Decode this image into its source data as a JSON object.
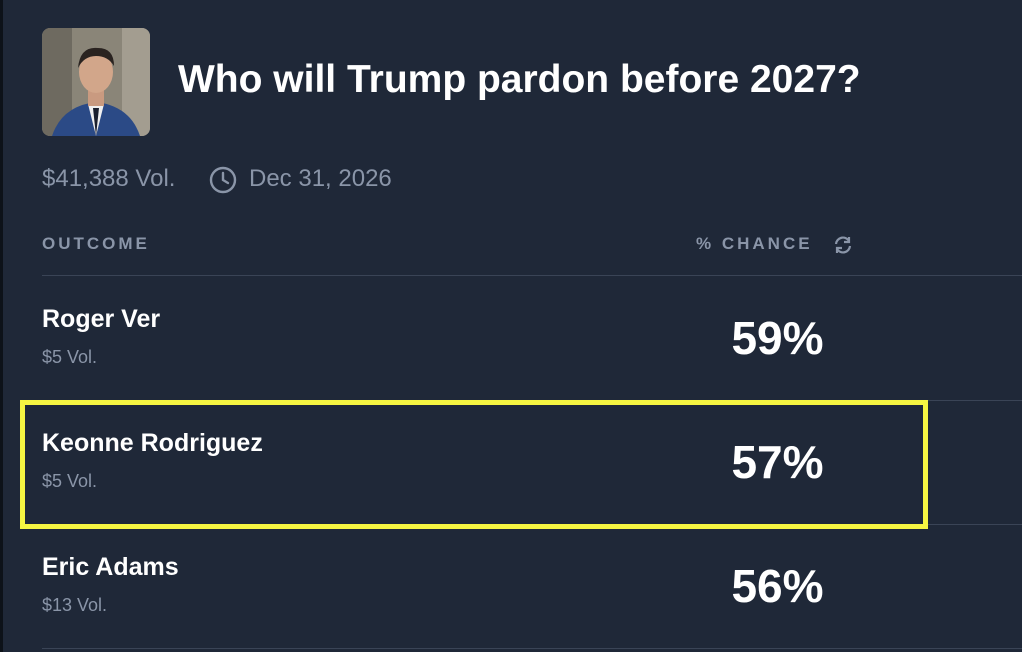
{
  "header": {
    "title": "Who will Trump pardon before 2027?",
    "volume": "$41,388 Vol.",
    "end_date": "Dec 31, 2026"
  },
  "table": {
    "columns": [
      "OUTCOME",
      "% CHANCE"
    ],
    "rows": [
      {
        "name": "Roger Ver",
        "volume": "$5 Vol.",
        "chance": "59%"
      },
      {
        "name": "Keonne Rodriguez",
        "volume": "$5 Vol.",
        "chance": "57%"
      },
      {
        "name": "Eric Adams",
        "volume": "$13 Vol.",
        "chance": "56%"
      }
    ]
  }
}
